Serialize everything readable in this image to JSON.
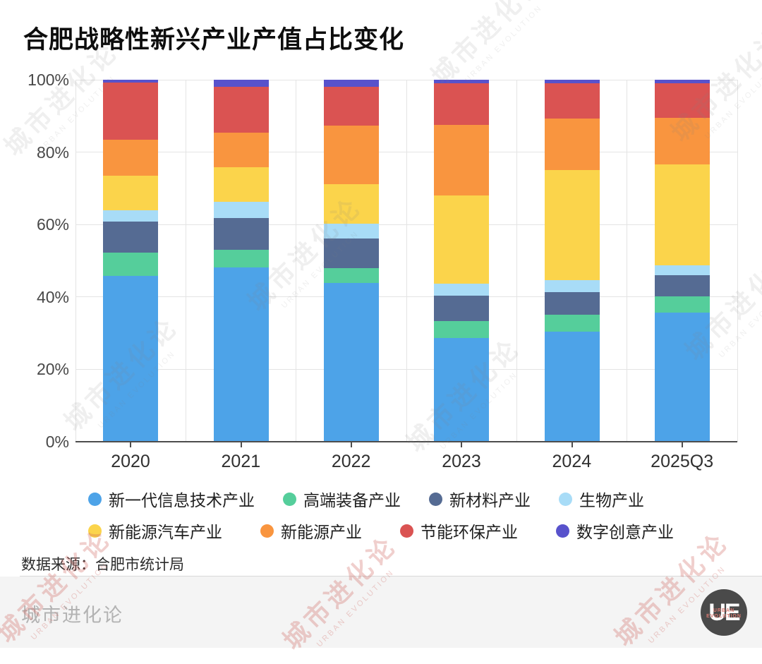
{
  "title": "合肥战略性新兴产业产值占比变化",
  "watermark": {
    "cn": "城市进化论",
    "en": "URBAN EVOLUTION"
  },
  "chart_data": {
    "type": "bar",
    "stacked": true,
    "unit": "percent of total output value",
    "title": "合肥战略性新兴产业产值占比变化",
    "categories": [
      "2020",
      "2021",
      "2022",
      "2023",
      "2024",
      "2025Q3"
    ],
    "series": [
      {
        "name": "新一代信息技术产业",
        "color": "#4DA3E8",
        "values": [
          45.8,
          48.2,
          43.9,
          28.7,
          30.4,
          35.7
        ]
      },
      {
        "name": "高端装备产业",
        "color": "#55CE9B",
        "values": [
          6.4,
          4.8,
          4.1,
          4.6,
          4.7,
          4.5
        ]
      },
      {
        "name": "新材料产业",
        "color": "#556B93",
        "values": [
          8.6,
          8.8,
          8.1,
          7.1,
          6.2,
          5.8
        ]
      },
      {
        "name": "生物产业",
        "color": "#A8DCF7",
        "values": [
          3.1,
          4.5,
          4.1,
          3.3,
          3.4,
          2.7
        ]
      },
      {
        "name": "新能源汽车产业",
        "color": "#FBD44B",
        "values": [
          9.6,
          9.5,
          11.0,
          24.3,
          30.3,
          28.0
        ]
      },
      {
        "name": "新能源产业",
        "color": "#F9953F",
        "values": [
          9.9,
          9.6,
          16.1,
          19.5,
          14.3,
          12.8
        ]
      },
      {
        "name": "节能环保产业",
        "color": "#DA5352",
        "values": [
          15.8,
          12.6,
          10.7,
          11.5,
          9.7,
          9.5
        ]
      },
      {
        "name": "数字创意产业",
        "color": "#5852CC",
        "values": [
          0.8,
          2.0,
          2.0,
          1.0,
          1.0,
          1.0
        ]
      }
    ],
    "y_axis": {
      "min": 0,
      "max": 100,
      "tick_step": 20,
      "tick_labels": [
        "0%",
        "20%",
        "40%",
        "60%",
        "80%",
        "100%"
      ]
    },
    "grid": true,
    "legend_position": "bottom"
  },
  "source": {
    "label": "数据来源：合肥市统计局"
  },
  "footer": {
    "brand": "城市进化论",
    "logo_text": "UE",
    "logo_sub_line1": "URBAN",
    "logo_sub_line2": "EVOLUTION"
  }
}
